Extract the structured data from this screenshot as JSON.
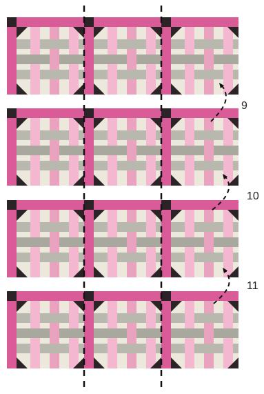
{
  "figure": {
    "description_labels": [
      "9",
      "10",
      "11"
    ],
    "grid": {
      "rows": 4,
      "columns": 3
    },
    "colors": {
      "background": "#ffffff",
      "sashing_pink": "#d95c98",
      "sashing_pink_dark": "#c94786",
      "corner_dark": "#2b2326",
      "block_cream": "#ece9dc",
      "weave_gray": "#b9b8ae",
      "weave_gray_dark": "#a9a89f",
      "weave_pink": "#f3b8cf",
      "weave_pink_dark": "#eaa3bf",
      "guide_line": "#111111"
    },
    "icons": [
      "dashed-cut-line",
      "curved-arrow"
    ]
  }
}
